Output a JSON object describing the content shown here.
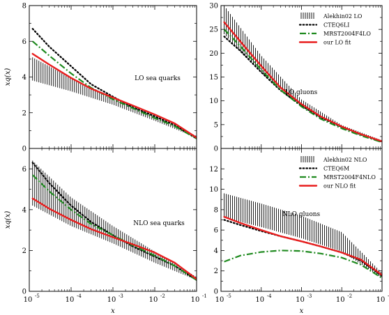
{
  "chart_data": [
    {
      "type": "line",
      "id": "tl",
      "annotation": "LO sea quarks",
      "xlabel": "",
      "ylabel": "xq(x)",
      "xscale": "log",
      "xlim": [
        1e-05,
        0.1
      ],
      "ylim": [
        0,
        8
      ],
      "xticks": [],
      "yticks": [
        0,
        2,
        4,
        6,
        8
      ],
      "legend": [],
      "band": {
        "name": "Alekhin02 LO",
        "x": [
          1.2e-05,
          0.0001,
          0.001,
          0.01,
          0.1
        ],
        "lower": [
          3.8,
          3.2,
          2.45,
          1.55,
          0.6
        ],
        "upper": [
          5.1,
          3.95,
          2.85,
          1.8,
          0.7
        ]
      },
      "series": [
        {
          "name": "CTEQ6LI",
          "style": "dotted",
          "color": "#000000",
          "x": [
            1.2e-05,
            3e-05,
            0.0001,
            0.0003,
            0.001,
            0.003,
            0.01,
            0.03,
            0.1
          ],
          "y": [
            6.7,
            5.7,
            4.6,
            3.6,
            2.9,
            2.3,
            1.8,
            1.3,
            0.55
          ]
        },
        {
          "name": "MRST2004F4LO",
          "style": "dashdot",
          "color": "#1f8a1f",
          "x": [
            1.2e-05,
            3e-05,
            0.0001,
            0.0003,
            0.001,
            0.003,
            0.01,
            0.03,
            0.1
          ],
          "y": [
            6.0,
            5.2,
            4.2,
            3.4,
            2.75,
            2.25,
            1.7,
            1.25,
            0.55
          ]
        },
        {
          "name": "our LO fit",
          "style": "solid",
          "color": "#e81e1e",
          "x": [
            1.2e-05,
            3e-05,
            0.0001,
            0.0003,
            0.001,
            0.003,
            0.01,
            0.03,
            0.1
          ],
          "y": [
            5.3,
            4.7,
            3.95,
            3.35,
            2.85,
            2.4,
            1.9,
            1.4,
            0.6
          ]
        }
      ]
    },
    {
      "type": "line",
      "id": "tr",
      "annotation": "LO gluons",
      "xlabel": "",
      "ylabel": "",
      "xscale": "log",
      "xlim": [
        1e-05,
        0.1
      ],
      "ylim": [
        0,
        30
      ],
      "xticks": [],
      "yticks": [
        0,
        5,
        10,
        15,
        20,
        25,
        30
      ],
      "legend": [
        "Alekhin02 LO",
        "CTEQ6LI",
        "MRST2004F4LO",
        "our LO fit"
      ],
      "band": {
        "name": "Alekhin02 LO",
        "x": [
          1.2e-05,
          0.0001,
          0.001,
          0.01,
          0.1
        ],
        "lower": [
          24.0,
          16.0,
          8.8,
          4.3,
          1.4
        ],
        "upper": [
          30.0,
          19.5,
          10.3,
          4.9,
          1.7
        ]
      },
      "series": [
        {
          "name": "CTEQ6LI",
          "style": "dotted",
          "color": "#000000",
          "x": [
            1.2e-05,
            3e-05,
            0.0001,
            0.0003,
            0.001,
            0.003,
            0.01,
            0.03,
            0.1
          ],
          "y": [
            23.5,
            20.5,
            16.0,
            12.2,
            9.0,
            6.5,
            4.5,
            2.9,
            1.4
          ]
        },
        {
          "name": "MRST2004F4LO",
          "style": "dashdot",
          "color": "#1f8a1f",
          "x": [
            1.2e-05,
            3e-05,
            0.0001,
            0.0003,
            0.001,
            0.003,
            0.01,
            0.03,
            0.1
          ],
          "y": [
            25.0,
            21.5,
            16.5,
            12.3,
            8.8,
            6.2,
            4.2,
            2.7,
            1.3
          ]
        },
        {
          "name": "our LO fit",
          "style": "solid",
          "color": "#e81e1e",
          "x": [
            1.2e-05,
            3e-05,
            0.0001,
            0.0003,
            0.001,
            0.003,
            0.01,
            0.03,
            0.1
          ],
          "y": [
            26.5,
            22.5,
            17.3,
            12.8,
            9.3,
            6.7,
            4.6,
            3.0,
            1.5
          ]
        }
      ]
    },
    {
      "type": "line",
      "id": "bl",
      "annotation": "NLO sea quarks",
      "xlabel": "x",
      "ylabel": "xq(x)",
      "xscale": "log",
      "xlim": [
        1e-05,
        0.1
      ],
      "ylim": [
        0,
        7
      ],
      "xticks": [
        "10",
        "10",
        "10",
        "10",
        "10"
      ],
      "xtick_exponents": [
        "-5",
        "-4",
        "-3",
        "-2",
        "-1"
      ],
      "xtick_values": [
        1e-05,
        0.0001,
        0.001,
        0.01,
        0.1
      ],
      "yticks": [
        0,
        2,
        4,
        6
      ],
      "legend": [],
      "band": {
        "name": "Alekhin02 NLO",
        "x": [
          1.2e-05,
          0.0001,
          0.001,
          0.01,
          0.1
        ],
        "lower": [
          4.2,
          3.2,
          2.35,
          1.4,
          0.55
        ],
        "upper": [
          6.4,
          4.6,
          3.2,
          1.95,
          0.7
        ]
      },
      "series": [
        {
          "name": "CTEQ6M",
          "style": "dotted",
          "color": "#000000",
          "x": [
            1.2e-05,
            3e-05,
            0.0001,
            0.0003,
            0.001,
            0.003,
            0.01,
            0.03,
            0.1
          ],
          "y": [
            6.3,
            5.3,
            4.2,
            3.4,
            2.75,
            2.2,
            1.7,
            1.25,
            0.55
          ]
        },
        {
          "name": "MRST2004F4NLO",
          "style": "dashdot",
          "color": "#1f8a1f",
          "x": [
            1.2e-05,
            3e-05,
            0.0001,
            0.0003,
            0.001,
            0.003,
            0.01,
            0.03,
            0.1
          ],
          "y": [
            5.7,
            4.9,
            4.0,
            3.3,
            2.75,
            2.25,
            1.75,
            1.25,
            0.55
          ]
        },
        {
          "name": "our NLO fit",
          "style": "solid",
          "color": "#e81e1e",
          "x": [
            1.2e-05,
            3e-05,
            0.0001,
            0.0003,
            0.001,
            0.003,
            0.01,
            0.03,
            0.1
          ],
          "y": [
            4.55,
            4.05,
            3.5,
            3.05,
            2.65,
            2.3,
            1.9,
            1.4,
            0.6
          ]
        }
      ]
    },
    {
      "type": "line",
      "id": "br",
      "annotation": "NLO gluons",
      "xlabel": "x",
      "ylabel": "",
      "xscale": "log",
      "xlim": [
        1e-05,
        0.1
      ],
      "ylim": [
        0,
        14
      ],
      "xticks": [
        "10",
        "10",
        "10",
        "10",
        "10"
      ],
      "xtick_exponents": [
        "-5",
        "-4",
        "-3",
        "-2",
        "-1"
      ],
      "xtick_values": [
        1e-05,
        0.0001,
        0.001,
        0.01,
        0.1
      ],
      "yticks": [
        0,
        2,
        4,
        6,
        8,
        10,
        12
      ],
      "legend": [
        "Alekhin02 NLO",
        "CTEQ6M",
        "MRST2004F4NLO",
        "our NLO fit"
      ],
      "band": {
        "name": "Alekhin02 NLO",
        "x": [
          1.2e-05,
          0.0001,
          0.001,
          0.01,
          0.1
        ],
        "lower": [
          7.2,
          6.3,
          5.2,
          3.9,
          1.3
        ],
        "upper": [
          9.6,
          8.6,
          7.4,
          5.8,
          1.8
        ]
      },
      "series": [
        {
          "name": "CTEQ6M",
          "style": "dotted",
          "color": "#000000",
          "x": [
            1.2e-05,
            3e-05,
            0.0001,
            0.0003,
            0.001,
            0.003,
            0.01,
            0.03,
            0.1
          ],
          "y": [
            7.0,
            6.5,
            5.9,
            5.4,
            4.9,
            4.4,
            3.8,
            3.0,
            1.5
          ]
        },
        {
          "name": "MRST2004F4NLO",
          "style": "dashdot",
          "color": "#1f8a1f",
          "x": [
            1.2e-05,
            3e-05,
            0.0001,
            0.0003,
            0.001,
            0.003,
            0.01,
            0.03,
            0.1
          ],
          "y": [
            2.9,
            3.5,
            3.85,
            4.0,
            3.95,
            3.7,
            3.3,
            2.6,
            1.3
          ]
        },
        {
          "name": "our NLO fit",
          "style": "solid",
          "color": "#e81e1e",
          "x": [
            1.2e-05,
            3e-05,
            0.0001,
            0.0003,
            0.001,
            0.003,
            0.01,
            0.03,
            0.1
          ],
          "y": [
            7.3,
            6.7,
            6.0,
            5.4,
            4.9,
            4.4,
            3.8,
            3.1,
            1.6
          ]
        }
      ]
    }
  ]
}
